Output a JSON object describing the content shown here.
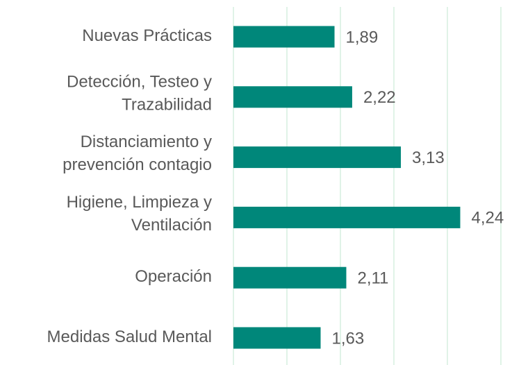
{
  "chart_data": {
    "type": "hbar",
    "categories": [
      "Nuevas Prácticas",
      "Detección, Testeo y\nTrazabilidad",
      "Distanciamiento y\nprevención contagio",
      "Higiene, Limpieza y\nVentilación",
      "Operación",
      "Medidas Salud Mental"
    ],
    "values": [
      1.89,
      2.22,
      3.13,
      4.24,
      2.11,
      1.63
    ],
    "value_labels": [
      "1,89",
      "2,22",
      "3,13",
      "4,24",
      "2,11",
      "1,63"
    ],
    "color": "#00877a",
    "xlim": [
      0,
      5
    ],
    "xticks": [
      0,
      1,
      2,
      3,
      4,
      5
    ],
    "grid": true
  }
}
